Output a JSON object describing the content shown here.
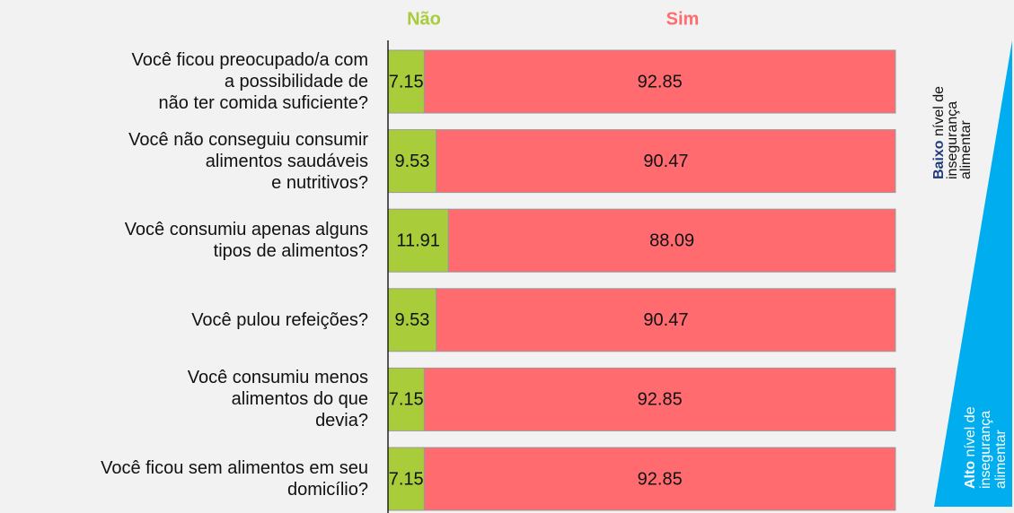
{
  "chart_data": {
    "type": "stacked_barh",
    "categories": [
      "Você ficou preocupado/a com\na possibilidade de\nnão ter comida suficiente?",
      "Você não conseguiu consumir\nalimentos saudáveis\ne nutritivos?",
      "Você consumiu apenas alguns\ntipos de alimentos?",
      "Você pulou refeições?",
      "Você consumiu menos\nalimentos do que\ndevia?",
      "Você ficou sem alimentos em seu\ndomicílio?"
    ],
    "series": [
      {
        "name": "Não",
        "color": "#a9cc3b",
        "values": [
          7.15,
          9.53,
          11.91,
          9.53,
          7.15,
          7.15
        ]
      },
      {
        "name": "Sim",
        "color": "#ff6b6f",
        "values": [
          92.85,
          90.47,
          88.09,
          90.47,
          92.85,
          92.85
        ]
      }
    ],
    "xlim": [
      0,
      100
    ],
    "annotations": {
      "low": {
        "bold": "Baixo",
        "lines": [
          "nível de",
          "insegurança",
          "alimentar"
        ]
      },
      "high": {
        "bold": "Alto",
        "lines": [
          "nível de",
          "insegurança",
          "alimentar"
        ]
      },
      "color": "#00aeef"
    }
  }
}
